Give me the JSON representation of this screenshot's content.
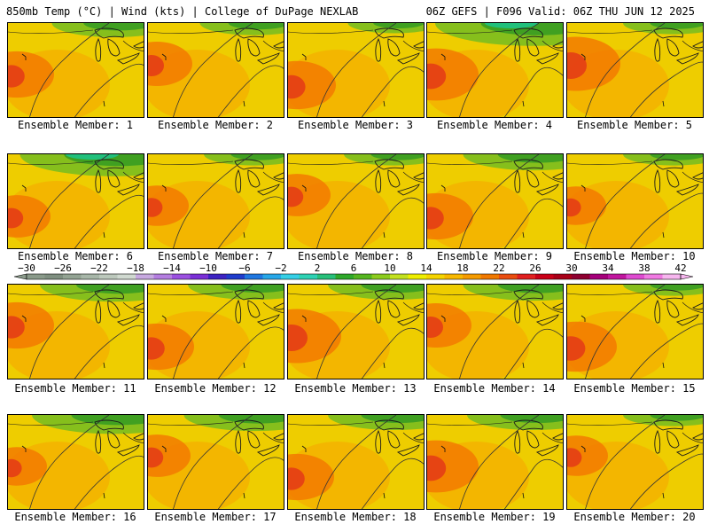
{
  "header": {
    "left": "850mb Temp (°C) | Wind (kts) | College of DuPage NEXLAB",
    "right": "06Z GEFS | F096 Valid: 06Z THU JUN 12 2025"
  },
  "colors": {
    "land_warm": "#f3b400",
    "land_mid": "#eecd00",
    "hot": "#f27a00",
    "very_hot": "#e33a16",
    "cool": "#7fbe1e",
    "cold": "#3c9e22",
    "coldest": "#21c07c",
    "outline": "#1a1a1a"
  },
  "panels": [
    {
      "label": "Ensemble Member: 1",
      "member": 1,
      "hot_level": 0.55,
      "cool_level": 0.45
    },
    {
      "label": "Ensemble Member: 2",
      "member": 2,
      "hot_level": 0.5,
      "cool_level": 0.35
    },
    {
      "label": "Ensemble Member: 3",
      "member": 3,
      "hot_level": 0.6,
      "cool_level": 0.25
    },
    {
      "label": "Ensemble Member: 4",
      "member": 4,
      "hot_level": 0.7,
      "cool_level": 0.9
    },
    {
      "label": "Ensemble Member: 5",
      "member": 5,
      "hot_level": 0.75,
      "cool_level": 0.3
    },
    {
      "label": "Ensemble Member: 6",
      "member": 6,
      "hot_level": 0.45,
      "cool_level": 0.85
    },
    {
      "label": "Ensemble Member: 7",
      "member": 7,
      "hot_level": 0.4,
      "cool_level": 0.3
    },
    {
      "label": "Ensemble Member: 8",
      "member": 8,
      "hot_level": 0.45,
      "cool_level": 0.3
    },
    {
      "label": "Ensemble Member: 9",
      "member": 9,
      "hot_level": 0.55,
      "cool_level": 0.55
    },
    {
      "label": "Ensemble Member: 10",
      "member": 10,
      "hot_level": 0.35,
      "cool_level": 0.3
    },
    {
      "label": "Ensemble Member: 11",
      "member": 11,
      "hot_level": 0.55,
      "cool_level": 0.6
    },
    {
      "label": "Ensemble Member: 12",
      "member": 12,
      "hot_level": 0.55,
      "cool_level": 0.5
    },
    {
      "label": "Ensemble Member: 13",
      "member": 13,
      "hot_level": 0.75,
      "cool_level": 0.5
    },
    {
      "label": "Ensemble Member: 14",
      "member": 14,
      "hot_level": 0.5,
      "cool_level": 0.55
    },
    {
      "label": "Ensemble Member: 15",
      "member": 15,
      "hot_level": 0.65,
      "cool_level": 0.3
    },
    {
      "label": "Ensemble Member: 16",
      "member": 16,
      "hot_level": 0.35,
      "cool_level": 0.7
    },
    {
      "label": "Ensemble Member: 17",
      "member": 17,
      "hot_level": 0.45,
      "cool_level": 0.55
    },
    {
      "label": "Ensemble Member: 18",
      "member": 18,
      "hot_level": 0.55,
      "cool_level": 0.5
    },
    {
      "label": "Ensemble Member: 19",
      "member": 19,
      "hot_level": 0.7,
      "cool_level": 0.5
    },
    {
      "label": "Ensemble Member: 20",
      "member": 20,
      "hot_level": 0.4,
      "cool_level": 0.3
    }
  ],
  "colorbar": {
    "labels": [
      "−30",
      "−26",
      "−22",
      "−18",
      "−14",
      "−10",
      "−6",
      "−2",
      "2",
      "6",
      "10",
      "14",
      "18",
      "22",
      "26",
      "30",
      "34",
      "38",
      "42"
    ],
    "colors": [
      "#8a9a8a",
      "#7f8f80",
      "#93a393",
      "#a7b6a8",
      "#bcc8bc",
      "#d0d9d0",
      "#c7a9e0",
      "#b47ee0",
      "#9b50e0",
      "#7a2fd6",
      "#3d23c2",
      "#1f3ccc",
      "#2077e0",
      "#27a7e8",
      "#35cfe6",
      "#2ed2b4",
      "#28c07a",
      "#2fa82a",
      "#55b520",
      "#8ccc1e",
      "#c2e01e",
      "#eeee00",
      "#f5d400",
      "#f7b800",
      "#f59b00",
      "#f07800",
      "#e94d10",
      "#e02020",
      "#c90018",
      "#a80018",
      "#8e0030",
      "#a5007a",
      "#c0169e",
      "#de4bd0",
      "#f07ae2",
      "#f6b6ee"
    ]
  }
}
